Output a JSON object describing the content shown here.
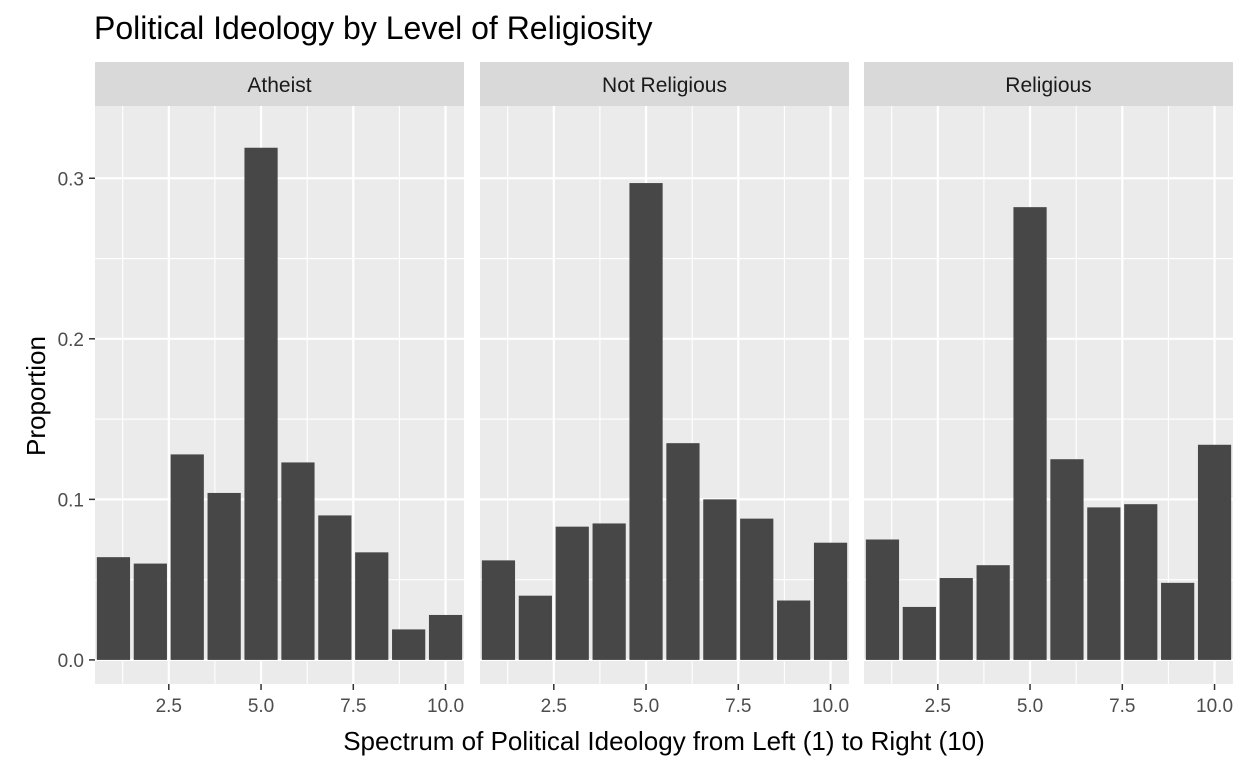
{
  "chart_data": {
    "type": "bar",
    "title": "Political Ideology by Level of Religiosity",
    "xlabel": "Spectrum of Political Ideology from Left (1) to Right (10)",
    "ylabel": "Proportion",
    "x": [
      1,
      2,
      3,
      4,
      5,
      6,
      7,
      8,
      9,
      10
    ],
    "xlim": [
      0.5,
      10.5
    ],
    "ylim": [
      -0.015,
      0.345
    ],
    "x_ticks": [
      2.5,
      5.0,
      7.5,
      10.0
    ],
    "x_tick_labels": [
      "2.5",
      "5.0",
      "7.5",
      "10.0"
    ],
    "y_ticks": [
      0.0,
      0.1,
      0.2,
      0.3
    ],
    "y_tick_labels": [
      "0.0",
      "0.1",
      "0.2",
      "0.3"
    ],
    "grid": true,
    "panels": [
      {
        "name": "Atheist",
        "values": [
          0.064,
          0.06,
          0.128,
          0.104,
          0.319,
          0.123,
          0.09,
          0.067,
          0.019,
          0.028
        ]
      },
      {
        "name": "Not Religious",
        "values": [
          0.062,
          0.04,
          0.083,
          0.085,
          0.297,
          0.135,
          0.1,
          0.088,
          0.037,
          0.073
        ]
      },
      {
        "name": "Religious",
        "values": [
          0.075,
          0.033,
          0.051,
          0.059,
          0.282,
          0.125,
          0.095,
          0.097,
          0.048,
          0.134
        ]
      }
    ]
  },
  "colors": {
    "panel_background": "#ebebeb",
    "strip_background": "#d9d9d9",
    "bar_fill": "#474747",
    "grid_line": "#ffffff"
  }
}
